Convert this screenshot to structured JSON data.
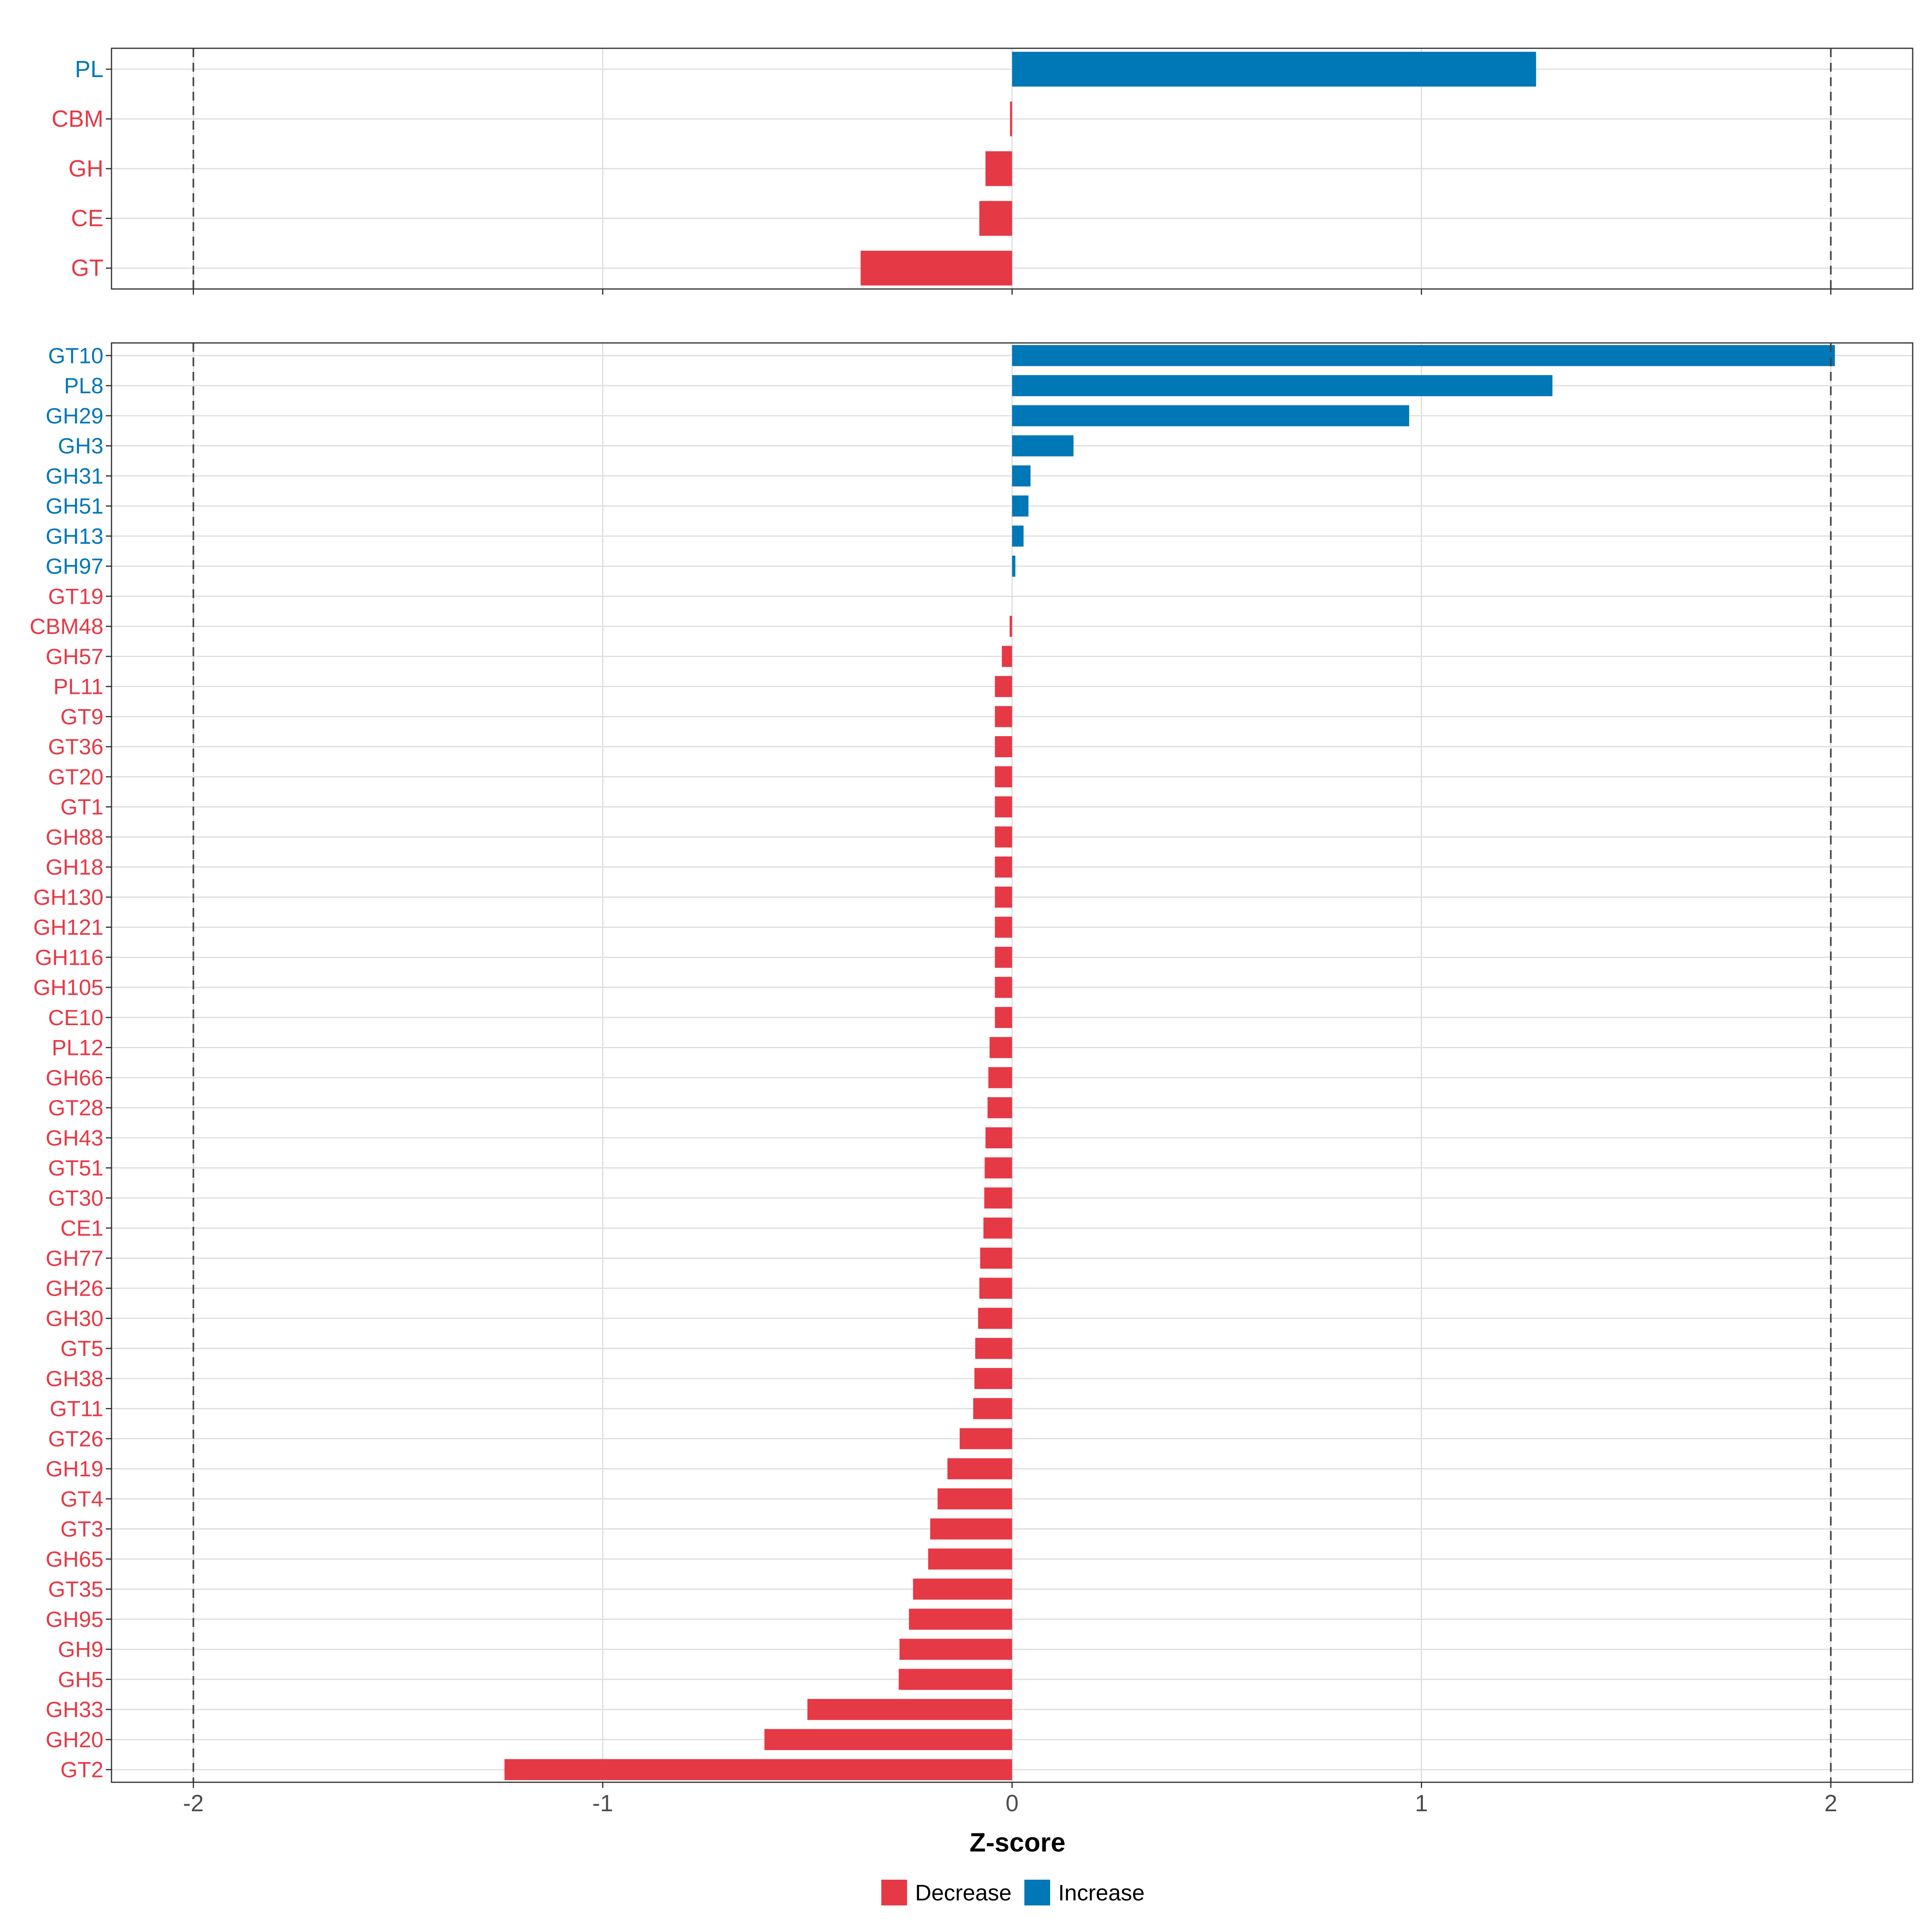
{
  "colors": {
    "decrease": "#E63946",
    "increase": "#0077B6",
    "grid": "#DEDEDE",
    "panel_border": "#333333",
    "ref_line": "#444444",
    "axis_text": "#4D4D4D",
    "title_text": "#000000"
  },
  "chart_data": [
    {
      "type": "bar",
      "orientation": "horizontal",
      "panel": "top",
      "xlim": [
        -2.2,
        2.2
      ],
      "xticks": [
        -2,
        -1,
        0,
        1,
        2
      ],
      "reference_lines": [
        -2,
        2
      ],
      "categories": [
        "PL",
        "CBM",
        "GH",
        "CE",
        "GT"
      ],
      "values": [
        1.28,
        -0.005,
        -0.065,
        -0.08,
        -0.37
      ],
      "direction": [
        "Increase",
        "Decrease",
        "Decrease",
        "Decrease",
        "Decrease"
      ]
    },
    {
      "type": "bar",
      "orientation": "horizontal",
      "panel": "bottom",
      "xlim": [
        -2.2,
        2.2
      ],
      "xticks": [
        -2,
        -1,
        0,
        1,
        2
      ],
      "tick_labels": [
        "-2",
        "-1",
        "0",
        "1",
        "2"
      ],
      "reference_lines": [
        -2,
        2
      ],
      "xlabel": "Z-score",
      "categories": [
        "GT10",
        "PL8",
        "GH29",
        "GH3",
        "GH31",
        "GH51",
        "GH13",
        "GH97",
        "GT19",
        "CBM48",
        "GH57",
        "PL11",
        "GT9",
        "GT36",
        "GT20",
        "GT1",
        "GH88",
        "GH18",
        "GH130",
        "GH121",
        "GH116",
        "GH105",
        "CE10",
        "PL12",
        "GH66",
        "GT28",
        "GH43",
        "GT51",
        "GT30",
        "CE1",
        "GH77",
        "GH26",
        "GH30",
        "GT5",
        "GH38",
        "GT11",
        "GT26",
        "GH19",
        "GT4",
        "GT3",
        "GH65",
        "GT35",
        "GH95",
        "GH9",
        "GH5",
        "GH33",
        "GH20",
        "GT2"
      ],
      "values": [
        2.01,
        1.32,
        0.97,
        0.15,
        0.045,
        0.04,
        0.028,
        0.008,
        0,
        -0.006,
        -0.025,
        -0.042,
        -0.042,
        -0.042,
        -0.042,
        -0.042,
        -0.042,
        -0.042,
        -0.042,
        -0.042,
        -0.042,
        -0.042,
        -0.042,
        -0.055,
        -0.058,
        -0.06,
        -0.065,
        -0.067,
        -0.068,
        -0.07,
        -0.078,
        -0.08,
        -0.083,
        -0.09,
        -0.092,
        -0.095,
        -0.128,
        -0.158,
        -0.182,
        -0.2,
        -0.205,
        -0.242,
        -0.252,
        -0.275,
        -0.277,
        -0.5,
        -0.605,
        -1.24
      ],
      "direction": [
        "Increase",
        "Increase",
        "Increase",
        "Increase",
        "Increase",
        "Increase",
        "Increase",
        "Increase",
        "Decrease",
        "Decrease",
        "Decrease",
        "Decrease",
        "Decrease",
        "Decrease",
        "Decrease",
        "Decrease",
        "Decrease",
        "Decrease",
        "Decrease",
        "Decrease",
        "Decrease",
        "Decrease",
        "Decrease",
        "Decrease",
        "Decrease",
        "Decrease",
        "Decrease",
        "Decrease",
        "Decrease",
        "Decrease",
        "Decrease",
        "Decrease",
        "Decrease",
        "Decrease",
        "Decrease",
        "Decrease",
        "Decrease",
        "Decrease",
        "Decrease",
        "Decrease",
        "Decrease",
        "Decrease",
        "Decrease",
        "Decrease",
        "Decrease",
        "Decrease",
        "Decrease",
        "Decrease"
      ]
    }
  ],
  "legend": {
    "position": "bottom",
    "items": [
      {
        "label": "Decrease",
        "color": "#E63946"
      },
      {
        "label": "Increase",
        "color": "#0077B6"
      }
    ]
  }
}
